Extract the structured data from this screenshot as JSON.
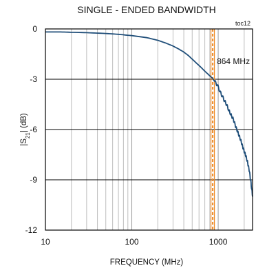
{
  "chart_data": {
    "type": "line",
    "title": "SINGLE - ENDED BANDWIDTH",
    "tag": "toc12",
    "xlabel": "FREQUENCY (MHz)",
    "ylabel_main": "|S",
    "ylabel_sub": "21",
    "ylabel_tail": "| (dB)",
    "x_scale": "log",
    "xlim": [
      10,
      2500
    ],
    "ylim": [
      -12,
      0
    ],
    "x_ticks": [
      {
        "value": 10,
        "label": "10"
      },
      {
        "value": 100,
        "label": "100"
      },
      {
        "value": 1000,
        "label": "1000"
      }
    ],
    "y_ticks": [
      {
        "value": 0,
        "label": "0"
      },
      {
        "value": -3,
        "label": "-3"
      },
      {
        "value": -6,
        "label": "-6"
      },
      {
        "value": -9,
        "label": "-9"
      },
      {
        "value": -12,
        "label": "-12"
      }
    ],
    "grid": true,
    "colors": {
      "line": "#1f4e79",
      "marker": "#f08a24",
      "grid": "#bdbdbd",
      "major_grid": "#000000"
    },
    "marker": {
      "x": 864,
      "label": "864 MHz"
    },
    "series": [
      {
        "x": [
          10,
          15,
          20,
          30,
          50,
          70,
          100,
          150,
          200,
          250,
          300,
          350,
          400,
          450,
          500,
          550,
          600,
          650,
          700,
          750,
          800,
          864,
          900,
          950,
          1000,
          1050,
          1100,
          1150,
          1200,
          1250,
          1300,
          1400,
          1500,
          1600,
          1700,
          1800,
          1900,
          2000,
          2100,
          2200,
          2300,
          2400,
          2500
        ],
        "y": [
          -0.18,
          -0.18,
          -0.2,
          -0.22,
          -0.27,
          -0.32,
          -0.4,
          -0.52,
          -0.68,
          -0.85,
          -1.02,
          -1.2,
          -1.38,
          -1.58,
          -1.8,
          -2.0,
          -2.18,
          -2.35,
          -2.52,
          -2.66,
          -2.8,
          -2.95,
          -3.1,
          -3.25,
          -3.45,
          -3.75,
          -3.95,
          -4.15,
          -4.35,
          -4.5,
          -4.75,
          -5.1,
          -5.4,
          -5.85,
          -6.2,
          -6.55,
          -6.95,
          -7.3,
          -7.6,
          -8.0,
          -8.5,
          -9.2,
          -10.0
        ]
      }
    ]
  }
}
